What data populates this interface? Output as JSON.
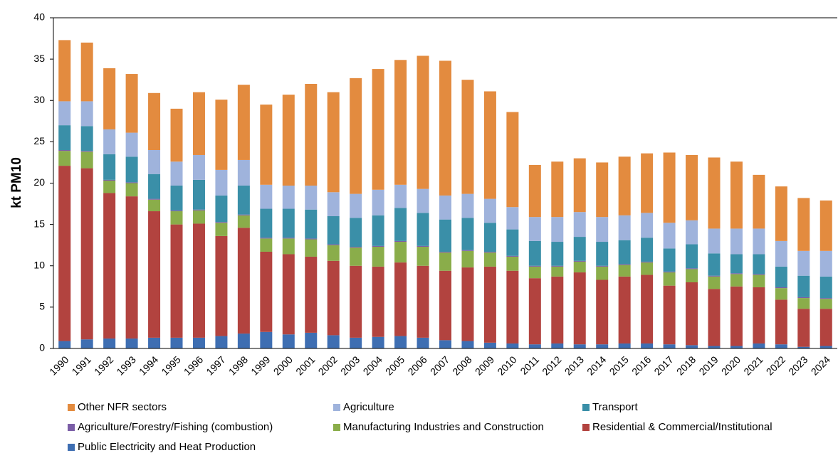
{
  "chart_data": {
    "type": "stacked_bar",
    "y_label": "kt PM10",
    "categories": [
      "1990",
      "1991",
      "1992",
      "1993",
      "1994",
      "1995",
      "1996",
      "1997",
      "1998",
      "1999",
      "2000",
      "2001",
      "2002",
      "2003",
      "2004",
      "2005",
      "2006",
      "2007",
      "2008",
      "2009",
      "2010",
      "2011",
      "2012",
      "2013",
      "2014",
      "2015",
      "2016",
      "2017",
      "2018",
      "2019",
      "2020",
      "2021",
      "2022",
      "2023",
      "2024"
    ],
    "series": [
      {
        "name": "Other NFR sectors",
        "color": "#e38b3f",
        "values": [
          7.4,
          7.1,
          7.4,
          7.1,
          6.9,
          6.4,
          7.6,
          8.5,
          9.1,
          9.7,
          11.0,
          12.3,
          12.1,
          14.0,
          14.6,
          15.1,
          16.1,
          16.3,
          13.8,
          13.0,
          11.5,
          6.3,
          6.7,
          6.5,
          6.6,
          7.1,
          7.2,
          8.5,
          7.9,
          8.6,
          8.1,
          6.5,
          6.6,
          6.4,
          6.1
        ]
      },
      {
        "name": "Agriculture",
        "color": "#9fb3dc",
        "values": [
          2.9,
          3.0,
          3.0,
          2.9,
          2.9,
          2.9,
          3.0,
          3.1,
          3.1,
          2.9,
          2.8,
          2.9,
          2.9,
          2.9,
          3.1,
          2.8,
          2.9,
          2.9,
          2.9,
          2.9,
          2.7,
          2.9,
          3.0,
          3.0,
          3.0,
          3.0,
          3.0,
          3.1,
          2.9,
          3.0,
          3.1,
          3.1,
          3.1,
          3.0,
          3.1
        ]
      },
      {
        "name": "Transport",
        "color": "#3a8fa8",
        "values": [
          3.0,
          3.0,
          3.1,
          3.1,
          3.0,
          3.0,
          3.6,
          3.2,
          3.5,
          3.5,
          3.5,
          3.5,
          3.4,
          3.5,
          3.7,
          4.0,
          4.0,
          3.9,
          3.9,
          3.5,
          3.2,
          3.0,
          2.9,
          2.9,
          2.9,
          2.9,
          2.9,
          2.8,
          2.9,
          2.7,
          2.3,
          2.4,
          2.5,
          2.6,
          2.6
        ]
      },
      {
        "name": "Agriculture/Forestry/Fishing (combustion)",
        "color": "#7b5ea7",
        "values": [
          0.1,
          0.1,
          0.1,
          0.1,
          0.1,
          0.1,
          0.1,
          0.1,
          0.1,
          0.1,
          0.1,
          0.1,
          0.1,
          0.1,
          0.1,
          0.1,
          0.1,
          0.1,
          0.1,
          0.1,
          0.1,
          0.1,
          0.1,
          0.1,
          0.1,
          0.1,
          0.1,
          0.1,
          0.1,
          0.1,
          0.1,
          0.1,
          0.1,
          0.1,
          0.1
        ]
      },
      {
        "name": "Manufacturing Industries and Construction",
        "color": "#8aad4a",
        "values": [
          1.8,
          2.0,
          1.5,
          1.6,
          1.4,
          1.6,
          1.6,
          1.6,
          1.5,
          1.6,
          1.9,
          2.1,
          1.9,
          2.2,
          2.4,
          2.5,
          2.3,
          2.2,
          2.0,
          1.7,
          1.7,
          1.4,
          1.2,
          1.3,
          1.6,
          1.4,
          1.5,
          1.6,
          1.6,
          1.5,
          1.5,
          1.5,
          1.4,
          1.3,
          1.2
        ]
      },
      {
        "name": "Residential & Commercial/Institutional",
        "color": "#b2433f",
        "values": [
          21.2,
          20.7,
          17.6,
          17.2,
          15.3,
          13.7,
          13.8,
          12.1,
          12.8,
          9.7,
          9.7,
          9.2,
          9.0,
          8.7,
          8.5,
          8.9,
          8.7,
          8.4,
          8.9,
          9.2,
          8.8,
          8.0,
          8.1,
          8.7,
          7.8,
          8.1,
          8.3,
          7.1,
          7.6,
          6.9,
          7.2,
          6.8,
          5.4,
          4.6,
          4.5
        ]
      },
      {
        "name": "Public Electricity and Heat Production",
        "color": "#3e6eb2",
        "values": [
          0.9,
          1.1,
          1.2,
          1.2,
          1.3,
          1.3,
          1.3,
          1.5,
          1.8,
          2.0,
          1.7,
          1.9,
          1.6,
          1.3,
          1.4,
          1.5,
          1.3,
          1.0,
          0.9,
          0.7,
          0.6,
          0.5,
          0.6,
          0.5,
          0.5,
          0.6,
          0.6,
          0.5,
          0.4,
          0.3,
          0.3,
          0.6,
          0.5,
          0.2,
          0.3
        ]
      }
    ],
    "ylim": [
      0,
      40
    ],
    "yticks": [
      0,
      5,
      10,
      15,
      20,
      25,
      30,
      35,
      40
    ],
    "grid": false
  }
}
